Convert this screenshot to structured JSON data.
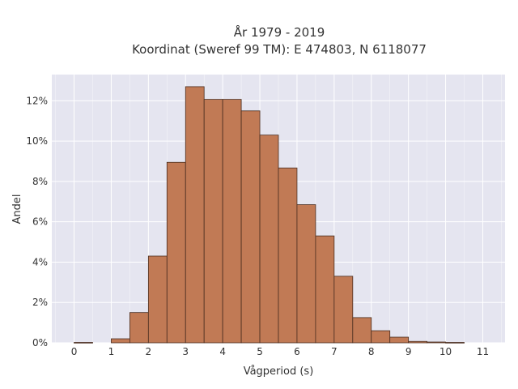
{
  "chart_data": {
    "type": "bar",
    "title_line1": "År 1979 - 2019",
    "title_line2": "Koordinat (Sweref 99 TM): E 474803, N 6118077",
    "xlabel": "Vågperiod (s)",
    "ylabel": "Andel",
    "bin_width": 0.5,
    "xlim": [
      -0.6,
      11.6
    ],
    "ylim": [
      0,
      13.3
    ],
    "x_ticks": [
      0,
      1,
      2,
      3,
      4,
      5,
      6,
      7,
      8,
      9,
      10,
      11
    ],
    "x_tick_labels": [
      "0",
      "1",
      "2",
      "3",
      "4",
      "5",
      "6",
      "7",
      "8",
      "9",
      "10",
      "11"
    ],
    "y_ticks": [
      0,
      2,
      4,
      6,
      8,
      10,
      12
    ],
    "y_tick_labels": [
      "0%",
      "2%",
      "4%",
      "6%",
      "8%",
      "10%",
      "12%"
    ],
    "bin_starts": [
      0,
      1,
      1.5,
      2,
      2.5,
      3,
      3.5,
      4,
      4.5,
      5,
      5.5,
      6,
      6.5,
      7,
      7.5,
      8,
      8.5,
      9,
      9.5,
      10
    ],
    "values": [
      0.02,
      0.2,
      1.5,
      4.3,
      8.95,
      12.7,
      12.07,
      12.07,
      11.5,
      10.3,
      8.67,
      6.85,
      5.3,
      3.3,
      1.25,
      0.6,
      0.28,
      0.07,
      0.04,
      0.02
    ],
    "colors": {
      "bar_fill": "#c17a55",
      "bar_stroke": "#4a2e20",
      "plot_bg": "#e5e5f0",
      "grid": "#ffffff",
      "text": "#333333"
    },
    "grid": true,
    "legend": "none"
  }
}
